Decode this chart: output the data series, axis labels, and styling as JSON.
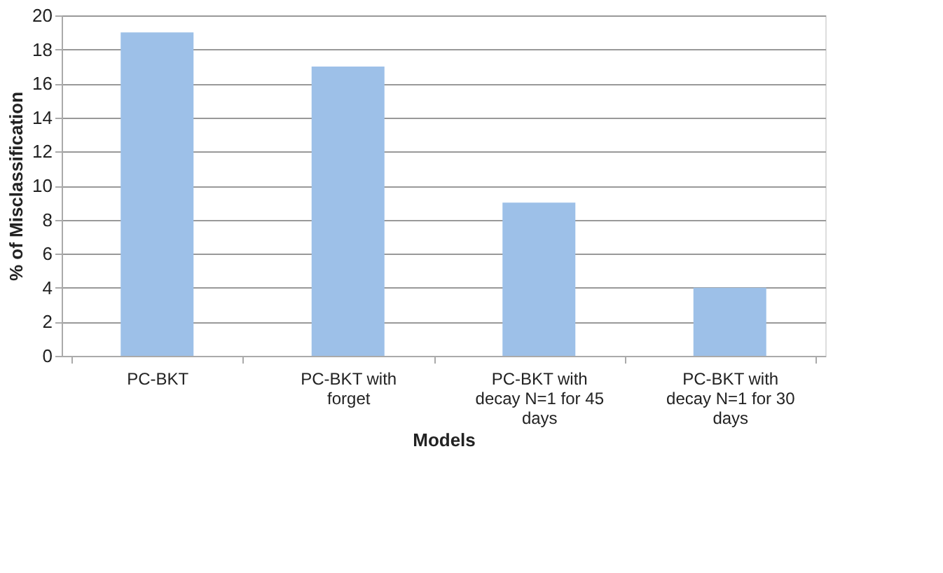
{
  "chart_data": {
    "type": "bar",
    "xlabel": "Models",
    "ylabel": "% of Misclassification",
    "categories": [
      "PC-BKT",
      "PC-BKT with forget",
      "PC-BKT with decay N=1 for 45 days",
      "PC-BKT with decay N=1 for 30 days"
    ],
    "values": [
      19,
      17,
      9,
      4
    ],
    "color": "#9dc0e8",
    "ylim": [
      0,
      20
    ],
    "yticks": [
      0,
      2,
      4,
      6,
      8,
      10,
      12,
      14,
      16,
      18,
      20
    ],
    "grid": "y"
  }
}
